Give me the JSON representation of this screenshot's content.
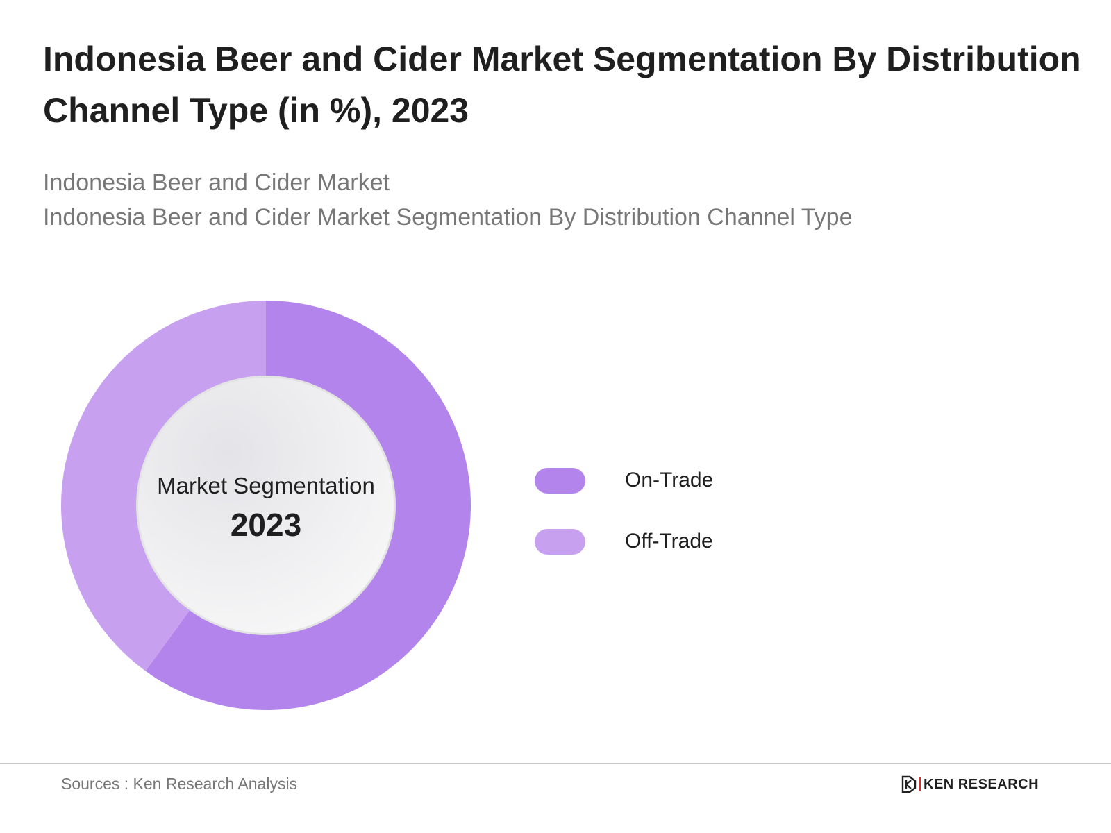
{
  "title": "Indonesia Beer and Cider Market Segmentation By Distribution Channel Type (in %), 2023",
  "subtitle_lines": [
    "Indonesia Beer and Cider Market",
    "Indonesia Beer and Cider Market Segmentation By Distribution Channel Type"
  ],
  "center": {
    "label": "Market Segmentation",
    "year": "2023"
  },
  "chart_data": {
    "type": "pie",
    "title": "Indonesia Beer and Cider Market Segmentation By Distribution Channel Type (in %), 2023",
    "categories": [
      "On-Trade",
      "Off-Trade"
    ],
    "values": [
      60,
      40
    ],
    "colors": [
      "#b384ec",
      "#c8a0f0"
    ],
    "legend_position": "right"
  },
  "footer": {
    "source": "Sources : Ken Research Analysis",
    "brand": "KEN RESEARCH"
  }
}
